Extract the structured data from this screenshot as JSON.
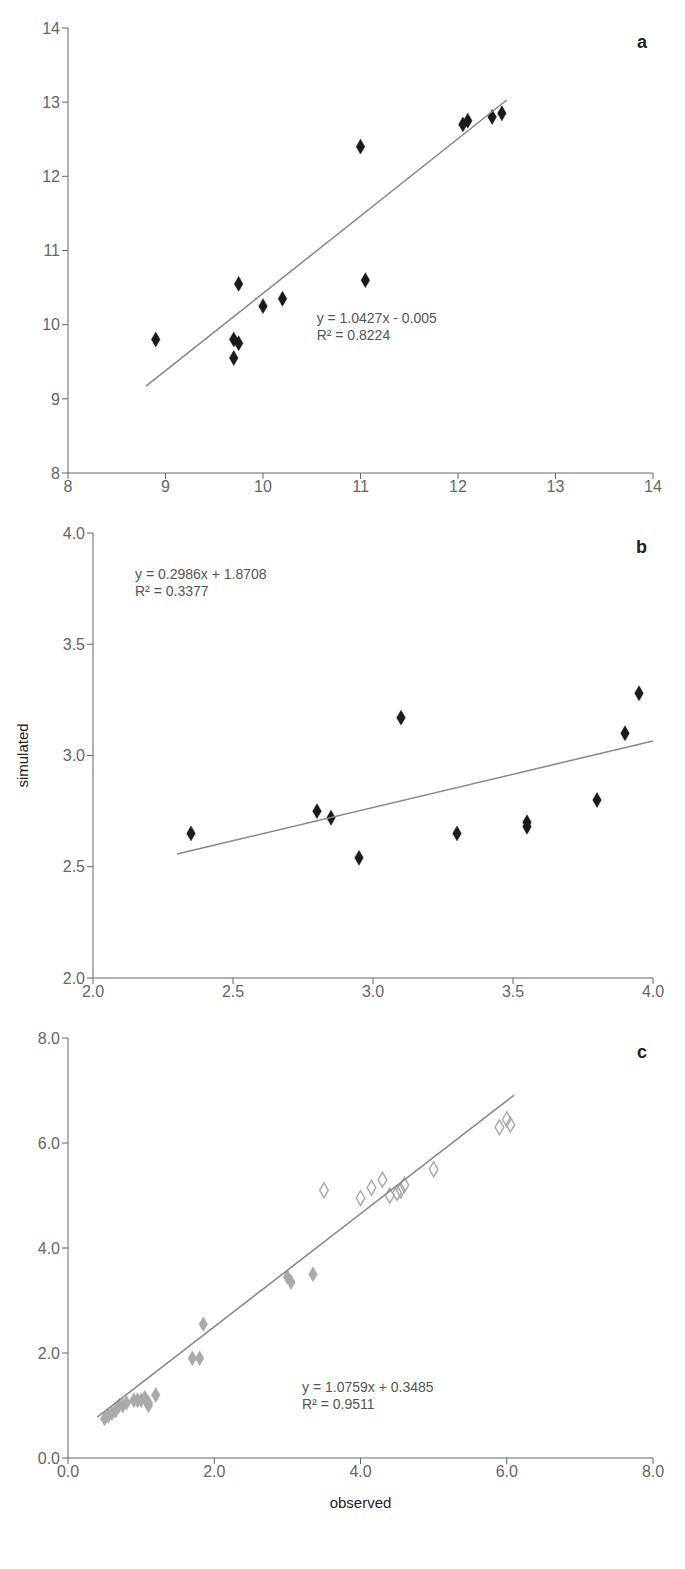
{
  "chart_data": [
    {
      "type": "scatter",
      "title": "a",
      "grid": false,
      "series": [
        {
          "type": "scatter",
          "marker": "diamond",
          "color": "#1a1a1a",
          "x": [
            8.9,
            9.7,
            9.7,
            9.75,
            9.75,
            10.0,
            10.2,
            11.0,
            11.05,
            12.05,
            12.1,
            12.35,
            12.45
          ],
          "values": [
            9.8,
            9.8,
            9.55,
            9.75,
            10.55,
            10.25,
            10.35,
            12.4,
            10.6,
            12.7,
            12.75,
            12.8,
            12.85
          ]
        },
        {
          "type": "line",
          "color": "#888888",
          "x": [
            8.8,
            12.5
          ],
          "values": [
            9.17076,
            13.02875
          ]
        }
      ],
      "xlim": [
        8,
        14
      ],
      "ylim": [
        8,
        14
      ],
      "xticks": [
        8,
        9,
        10,
        11,
        12,
        13,
        14
      ],
      "yticks": [
        8,
        9,
        10,
        11,
        12,
        13,
        14
      ],
      "annotations": [
        {
          "text": "y = 1.0427x - 0.005\nR² = 0.8224",
          "x": 10.55,
          "y": 10.2
        }
      ]
    },
    {
      "type": "scatter",
      "title": "b",
      "grid": false,
      "y_label": "simulated",
      "series": [
        {
          "type": "scatter",
          "marker": "diamond",
          "color": "#1a1a1a",
          "x": [
            2.35,
            2.8,
            2.85,
            2.95,
            3.1,
            3.3,
            3.55,
            3.55,
            3.8,
            3.9,
            3.95
          ],
          "values": [
            2.65,
            2.75,
            2.72,
            2.54,
            3.17,
            2.65,
            2.7,
            2.68,
            2.8,
            3.1,
            3.28
          ]
        },
        {
          "type": "line",
          "color": "#888888",
          "x": [
            2.3,
            4.0
          ],
          "values": [
            2.55758,
            3.0652
          ]
        }
      ],
      "xlim": [
        2.0,
        4.0
      ],
      "ylim": [
        2.0,
        4.0
      ],
      "xticks": [
        {
          "value": 2,
          "label": "2.0"
        },
        2.5,
        {
          "value": 3,
          "label": "3.0"
        },
        3.5,
        {
          "value": 4,
          "label": "4.0"
        }
      ],
      "yticks": [
        {
          "value": 2,
          "label": "2.0"
        },
        2.5,
        {
          "value": 3,
          "label": "3.0"
        },
        3.5,
        {
          "value": 4,
          "label": "4.0"
        }
      ],
      "annotations": [
        {
          "text": "y = 0.2986x + 1.8708\nR² = 0.3377",
          "x": 2.15,
          "y": 3.85
        }
      ]
    },
    {
      "type": "scatter",
      "title": "c",
      "grid": false,
      "x_label": "observed",
      "series": [
        {
          "type": "scatter",
          "marker": "diamond",
          "color": "#aaaaaa",
          "x": [
            0.5,
            0.55,
            0.6,
            0.65,
            0.7,
            0.75,
            0.8,
            0.9,
            0.95,
            1.0,
            1.05,
            1.1,
            1.1,
            1.2,
            1.7,
            1.8,
            1.85,
            3.0,
            3.05,
            3.35
          ],
          "values": [
            0.75,
            0.8,
            0.85,
            0.9,
            1.0,
            1.0,
            1.05,
            1.1,
            1.1,
            1.1,
            1.15,
            1.0,
            1.05,
            1.2,
            1.9,
            1.9,
            2.55,
            3.45,
            3.35,
            3.5
          ]
        },
        {
          "type": "scatter",
          "marker": "open_diamond",
          "color": "#aaaaaa",
          "x": [
            3.5,
            4.0,
            4.15,
            4.3,
            4.4,
            4.5,
            4.55,
            4.6,
            5.0,
            5.9,
            6.0,
            6.05
          ],
          "values": [
            5.1,
            4.95,
            5.15,
            5.3,
            5.0,
            5.05,
            5.1,
            5.2,
            5.5,
            6.3,
            6.45,
            6.35
          ]
        },
        {
          "type": "line",
          "color": "#888888",
          "x": [
            0.4,
            6.1
          ],
          "values": [
            0.77886,
            6.91149
          ]
        }
      ],
      "xlim": [
        0.0,
        8.0
      ],
      "ylim": [
        0.0,
        8.0
      ],
      "xticks": [
        {
          "value": 0,
          "label": "0.0"
        },
        {
          "value": 2,
          "label": "2.0"
        },
        {
          "value": 4,
          "label": "4.0"
        },
        {
          "value": 6,
          "label": "6.0"
        },
        {
          "value": 8,
          "label": "8.0"
        }
      ],
      "yticks": [
        {
          "value": 0,
          "label": "0.0"
        },
        {
          "value": 2,
          "label": "2.0"
        },
        {
          "value": 4,
          "label": "4.0"
        },
        {
          "value": 6,
          "label": "6.0"
        },
        {
          "value": 8,
          "label": "8.0"
        }
      ],
      "annotations": [
        {
          "text": "y = 1.0759x + 0.3485\nR² = 0.9511",
          "x": 3.2,
          "y": 1.5
        }
      ]
    }
  ]
}
